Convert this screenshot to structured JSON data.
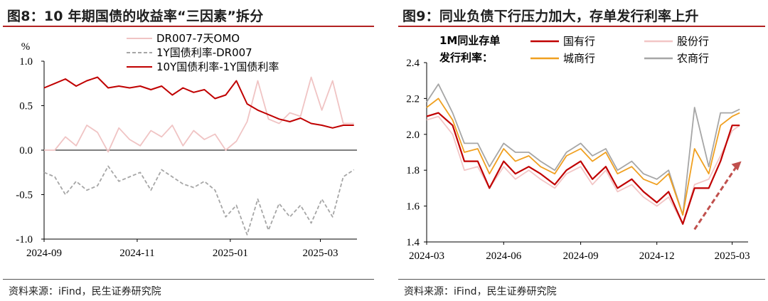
{
  "charts": [
    {
      "figure_title": "图8：10 年期国债的收益率“三因素”拆分",
      "source": "资料来源：iFind，民生证券研究院"
    },
    {
      "figure_title": "图9：同业负债下行压力加大，存单发行利率上升",
      "source": "资料来源：iFind，民生证券研究院"
    }
  ],
  "chart_data": [
    {
      "type": "line",
      "title": "图8：10 年期国债的收益率“三因素”拆分",
      "ylabel": "%",
      "ylim": [
        -1.0,
        1.0
      ],
      "yticks": [
        "1.0",
        "0.5",
        "0.0",
        "-0.5",
        "-1.0"
      ],
      "xticks": [
        "2024-09",
        "2024-11",
        "2025-01",
        "2025-03"
      ],
      "x": [
        "2024-09-01",
        "2024-09-08",
        "2024-09-15",
        "2024-09-22",
        "2024-09-29",
        "2024-10-06",
        "2024-10-13",
        "2024-10-20",
        "2024-10-27",
        "2024-11-03",
        "2024-11-10",
        "2024-11-17",
        "2024-11-24",
        "2024-12-01",
        "2024-12-08",
        "2024-12-15",
        "2024-12-22",
        "2024-12-29",
        "2025-01-05",
        "2025-01-12",
        "2025-01-19",
        "2025-01-26",
        "2025-02-02",
        "2025-02-09",
        "2025-02-16",
        "2025-02-23",
        "2025-03-02",
        "2025-03-09",
        "2025-03-16",
        "2025-03-23"
      ],
      "series": [
        {
          "name": "DR007-7天OMO",
          "color": "#f0c4c4",
          "values": [
            0.0,
            0.0,
            0.15,
            0.05,
            0.28,
            0.2,
            -0.02,
            0.25,
            0.12,
            0.05,
            0.22,
            0.15,
            0.28,
            0.05,
            0.22,
            0.12,
            0.18,
            0.0,
            0.1,
            0.32,
            0.78,
            0.35,
            0.3,
            0.42,
            0.38,
            0.82,
            0.45,
            0.78,
            0.3,
            0.3
          ]
        },
        {
          "name": "1Y国债利率-DR007",
          "color": "#a6a6a6",
          "values": [
            -0.25,
            -0.3,
            -0.5,
            -0.35,
            -0.45,
            -0.4,
            -0.18,
            -0.35,
            -0.3,
            -0.25,
            -0.45,
            -0.22,
            -0.3,
            -0.38,
            -0.42,
            -0.35,
            -0.45,
            -0.75,
            -0.62,
            -0.95,
            -0.55,
            -0.9,
            -0.6,
            -0.75,
            -0.62,
            -0.82,
            -0.55,
            -0.75,
            -0.3,
            -0.22
          ]
        },
        {
          "name": "10Y国债利率-1Y国债利率",
          "color": "#c00000",
          "values": [
            0.7,
            0.75,
            0.8,
            0.72,
            0.78,
            0.82,
            0.7,
            0.72,
            0.7,
            0.72,
            0.68,
            0.72,
            0.62,
            0.7,
            0.65,
            0.68,
            0.58,
            0.62,
            0.78,
            0.52,
            0.45,
            0.4,
            0.35,
            0.32,
            0.36,
            0.3,
            0.28,
            0.25,
            0.28,
            0.28
          ]
        }
      ]
    },
    {
      "type": "line",
      "title": "图9：同业负债下行压力加大，存单发行利率上升",
      "legend_title": "1M同业存单发行利率：",
      "ylim": [
        1.4,
        2.4
      ],
      "yticks": [
        "2.4",
        "2.2",
        "2.0",
        "1.8",
        "1.6",
        "1.4"
      ],
      "xticks": [
        "2024-03",
        "2024-06",
        "2024-09",
        "2024-12",
        "2025-03"
      ],
      "x": [
        "2024-03-01",
        "2024-03-15",
        "2024-04-01",
        "2024-04-15",
        "2024-05-01",
        "2024-05-15",
        "2024-06-01",
        "2024-06-15",
        "2024-07-01",
        "2024-07-15",
        "2024-08-01",
        "2024-08-15",
        "2024-09-01",
        "2024-09-15",
        "2024-10-01",
        "2024-10-15",
        "2024-11-01",
        "2024-11-15",
        "2024-12-01",
        "2024-12-15",
        "2025-01-01",
        "2025-01-15",
        "2025-02-01",
        "2025-02-15",
        "2025-03-01",
        "2025-03-10"
      ],
      "series": [
        {
          "name": "国有行",
          "color": "#c00000",
          "values": [
            2.1,
            2.12,
            2.05,
            1.85,
            1.85,
            1.7,
            1.85,
            1.78,
            1.82,
            1.78,
            1.72,
            1.8,
            1.85,
            1.75,
            1.82,
            1.7,
            1.75,
            1.68,
            1.62,
            1.68,
            1.5,
            1.7,
            1.7,
            1.85,
            2.05,
            2.05
          ]
        },
        {
          "name": "股份行",
          "color": "#f2c6c6",
          "values": [
            2.08,
            2.1,
            2.0,
            1.8,
            1.82,
            1.7,
            1.82,
            1.75,
            1.8,
            1.75,
            1.7,
            1.78,
            1.82,
            1.72,
            1.8,
            1.68,
            1.72,
            1.65,
            1.6,
            1.65,
            1.5,
            1.72,
            1.75,
            1.88,
            2.02,
            2.05
          ]
        },
        {
          "name": "城商行",
          "color": "#f0a020",
          "values": [
            2.15,
            2.2,
            2.08,
            1.9,
            1.92,
            1.78,
            1.92,
            1.85,
            1.88,
            1.82,
            1.78,
            1.88,
            1.92,
            1.85,
            1.9,
            1.78,
            1.82,
            1.75,
            1.72,
            1.78,
            1.55,
            1.92,
            1.78,
            2.05,
            2.1,
            2.12
          ]
        },
        {
          "name": "农商行",
          "color": "#a6a6a6",
          "values": [
            2.18,
            2.28,
            2.12,
            1.95,
            1.95,
            1.82,
            1.95,
            1.9,
            1.9,
            1.85,
            1.8,
            1.9,
            1.95,
            1.88,
            1.92,
            1.8,
            1.85,
            1.78,
            1.75,
            1.8,
            1.55,
            2.15,
            1.82,
            2.12,
            2.12,
            2.14
          ]
        }
      ],
      "annotation": {
        "type": "dashed-arrow",
        "color": "#c0504d"
      }
    }
  ]
}
